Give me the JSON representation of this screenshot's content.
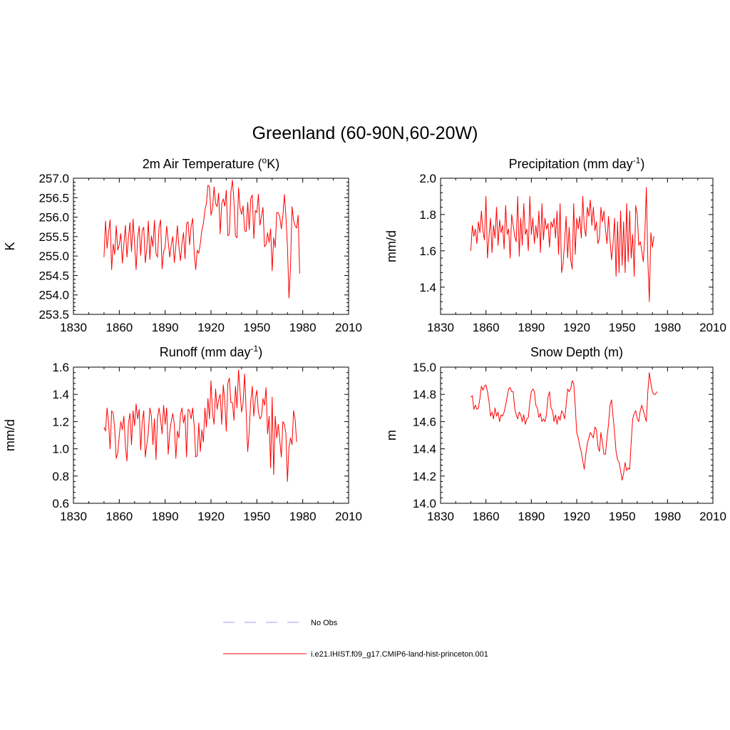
{
  "figure": {
    "title": "Greenland (60-90N,60-20W)"
  },
  "colors": {
    "model": "#ff0000",
    "obs": "#9999ff",
    "axes": "#000000"
  },
  "legend": {
    "items": [
      {
        "label": "No Obs",
        "style": "dashed",
        "color": "#9999ff"
      },
      {
        "label": "i.e21.IHIST.f09_g17.CMIP6-land-hist-princeton.001",
        "style": "solid",
        "color": "#ff0000"
      }
    ]
  },
  "chart_data": [
    {
      "type": "line",
      "title": "2m Air Temperature (",
      "title_sup": "o",
      "title_after": "K)",
      "ylabel": "K",
      "xlim": [
        1830,
        2010
      ],
      "xticks": [
        1830,
        1860,
        1890,
        1920,
        1950,
        1980,
        2010
      ],
      "ylim": [
        253.5,
        257.0
      ],
      "yticks": [
        253.5,
        254.0,
        254.5,
        255.0,
        255.5,
        256.0,
        256.5,
        257.0
      ],
      "ytick_decimals": 1,
      "series": [
        {
          "x_start": 1850,
          "values": [
            254.97,
            255.9,
            255.2,
            255.6,
            255.93,
            254.65,
            255.31,
            255.04,
            255.78,
            255.15,
            255.3,
            255.58,
            254.82,
            255.31,
            255.79,
            254.97,
            255.48,
            255.86,
            255.11,
            255.95,
            255.32,
            254.65,
            255.45,
            255.77,
            255.02,
            255.66,
            255.74,
            254.83,
            255.19,
            255.9,
            254.91,
            255.52,
            255.24,
            255.92,
            255.07,
            254.97,
            255.73,
            255.93,
            254.67,
            255.11,
            255.23,
            255.77,
            255.38,
            254.97,
            255.29,
            255.5,
            254.83,
            255.26,
            255.78,
            255.24,
            254.88,
            255.32,
            255.6,
            254.93,
            255.83,
            255.88,
            255.29,
            255.77,
            255.97,
            255.08,
            254.65,
            255.15,
            255.07,
            255.32,
            255.66,
            255.83,
            256.18,
            256.35,
            256.82,
            256.78,
            256.05,
            256.22,
            256.78,
            256.35,
            256.27,
            256.62,
            255.57,
            256.35,
            256.47,
            256.28,
            256.69,
            255.52,
            255.56,
            256.64,
            256.95,
            256.42,
            255.51,
            255.47,
            256.75,
            256.24,
            256.07,
            256.29,
            255.65,
            255.63,
            256.38,
            255.68,
            256.48,
            256.57,
            255.45,
            256.17,
            256.12,
            256.59,
            255.79,
            256.02,
            256.25,
            255.24,
            255.29,
            255.6,
            255.35,
            255.7,
            254.62,
            255.47,
            255.22,
            256.12,
            256.11,
            256.0,
            255.7,
            256.03,
            256.58,
            256.01,
            255.25,
            253.92,
            254.72,
            256.27,
            255.92,
            255.78,
            255.72,
            256.05,
            254.55
          ]
        }
      ]
    },
    {
      "type": "line",
      "title": "Precipitation (mm day",
      "title_sup": "-1",
      "title_after": ")",
      "ylabel": "mm/d",
      "xlim": [
        1830,
        2010
      ],
      "xticks": [
        1830,
        1860,
        1890,
        1920,
        1950,
        1980,
        2010
      ],
      "ylim": [
        1.25,
        2.0
      ],
      "yticks": [
        1.4,
        1.6,
        1.8,
        2.0
      ],
      "ytick_decimals": 1,
      "series": [
        {
          "x_start": 1850,
          "values": [
            1.6,
            1.74,
            1.68,
            1.72,
            1.64,
            1.76,
            1.7,
            1.82,
            1.71,
            1.66,
            1.9,
            1.56,
            1.68,
            1.78,
            1.59,
            1.74,
            1.67,
            1.84,
            1.63,
            1.77,
            1.7,
            1.74,
            1.61,
            1.85,
            1.69,
            1.72,
            1.56,
            1.8,
            1.74,
            1.68,
            1.65,
            1.9,
            1.57,
            1.78,
            1.63,
            1.86,
            1.69,
            1.72,
            1.6,
            1.9,
            1.69,
            1.78,
            1.64,
            1.74,
            1.67,
            1.82,
            1.59,
            1.86,
            1.66,
            1.78,
            1.72,
            1.75,
            1.62,
            1.76,
            1.73,
            1.78,
            1.67,
            1.82,
            1.58,
            1.86,
            1.48,
            1.53,
            1.65,
            1.79,
            1.56,
            1.73,
            1.55,
            1.5,
            1.86,
            1.58,
            1.78,
            1.72,
            1.79,
            1.67,
            1.9,
            1.73,
            1.68,
            1.84,
            1.79,
            1.88,
            1.74,
            1.84,
            1.71,
            1.76,
            1.64,
            1.67,
            1.84,
            1.76,
            1.82,
            1.72,
            1.64,
            1.79,
            1.66,
            1.55,
            1.64,
            1.78,
            1.46,
            1.76,
            1.48,
            1.82,
            1.52,
            1.76,
            1.48,
            1.86,
            1.54,
            1.82,
            1.56,
            1.69,
            1.46,
            1.85,
            1.8,
            1.63,
            1.65,
            1.6,
            1.54,
            1.68,
            1.95,
            1.55,
            1.32,
            1.7,
            1.62,
            1.68
          ]
        }
      ]
    },
    {
      "type": "line",
      "title": "Runoff (mm day",
      "title_sup": "-1",
      "title_after": ")",
      "ylabel": "mm/d",
      "xlim": [
        1830,
        2010
      ],
      "xticks": [
        1830,
        1860,
        1890,
        1920,
        1950,
        1980,
        2010
      ],
      "ylim": [
        0.6,
        1.6
      ],
      "yticks": [
        0.6,
        0.8,
        1.0,
        1.2,
        1.4,
        1.6
      ],
      "ytick_decimals": 1,
      "series": [
        {
          "x_start": 1850,
          "values": [
            1.16,
            1.13,
            1.3,
            1.19,
            1.0,
            1.28,
            1.26,
            1.15,
            0.93,
            0.97,
            1.1,
            1.2,
            1.14,
            1.24,
            1.02,
            0.91,
            1.19,
            1.26,
            1.03,
            1.28,
            1.17,
            1.33,
            1.22,
            1.29,
            0.99,
            1.2,
            1.28,
            0.94,
            1.03,
            1.12,
            1.3,
            1.24,
            1.03,
            1.22,
            0.92,
            1.23,
            1.3,
            1.22,
            1.11,
            1.32,
            1.18,
            1.3,
            0.96,
            1.12,
            1.2,
            1.26,
            1.18,
            0.93,
            1.13,
            1.08,
            1.25,
            1.3,
            1.19,
            1.25,
            0.94,
            1.29,
            1.28,
            1.22,
            1.3,
            1.17,
            0.94,
            0.95,
            1.19,
            0.98,
            1.14,
            1.05,
            1.3,
            1.16,
            1.37,
            1.22,
            1.5,
            1.26,
            1.18,
            1.44,
            1.29,
            1.36,
            1.4,
            1.18,
            1.47,
            1.35,
            1.13,
            1.48,
            1.52,
            1.34,
            1.34,
            1.21,
            1.46,
            1.3,
            1.58,
            1.42,
            1.27,
            1.34,
            1.55,
            1.27,
            0.98,
            1.13,
            1.35,
            1.46,
            1.24,
            1.37,
            1.43,
            1.27,
            1.22,
            1.24,
            1.37,
            1.32,
            1.45,
            1.11,
            1.24,
            0.86,
            1.38,
            0.81,
            1.24,
            1.08,
            1.18,
            1.06,
            0.94,
            1.2,
            1.18,
            1.11,
            0.76,
            1.01,
            1.08,
            1.03,
            1.28,
            1.22,
            1.05
          ]
        }
      ]
    },
    {
      "type": "line",
      "title": "Snow Depth (m)",
      "title_sup": "",
      "title_after": "",
      "ylabel": "m",
      "xlim": [
        1830,
        2010
      ],
      "xticks": [
        1830,
        1860,
        1890,
        1920,
        1950,
        1980,
        2010
      ],
      "ylim": [
        14.0,
        15.0
      ],
      "yticks": [
        14.0,
        14.2,
        14.4,
        14.6,
        14.8,
        15.0
      ],
      "ytick_decimals": 1,
      "series": [
        {
          "x_start": 1850,
          "values": [
            14.78,
            14.79,
            14.69,
            14.72,
            14.69,
            14.7,
            14.77,
            14.86,
            14.83,
            14.86,
            14.87,
            14.82,
            14.75,
            14.64,
            14.67,
            14.62,
            14.7,
            14.64,
            14.67,
            14.6,
            14.65,
            14.64,
            14.67,
            14.72,
            14.78,
            14.84,
            14.85,
            14.82,
            14.82,
            14.7,
            14.65,
            14.62,
            14.67,
            14.65,
            14.6,
            14.65,
            14.58,
            14.62,
            14.63,
            14.74,
            14.82,
            14.84,
            14.82,
            14.72,
            14.7,
            14.63,
            14.66,
            14.6,
            14.62,
            14.6,
            14.65,
            14.78,
            14.82,
            14.7,
            14.68,
            14.6,
            14.65,
            14.58,
            14.64,
            14.61,
            14.68,
            14.66,
            14.62,
            14.72,
            14.84,
            14.82,
            14.84,
            14.9,
            14.88,
            14.72,
            14.52,
            14.48,
            14.42,
            14.38,
            14.31,
            14.25,
            14.36,
            14.44,
            14.48,
            14.52,
            14.5,
            14.48,
            14.56,
            14.54,
            14.42,
            14.38,
            14.52,
            14.44,
            14.36,
            14.36,
            14.48,
            14.58,
            14.72,
            14.76,
            14.64,
            14.52,
            14.38,
            14.32,
            14.3,
            14.24,
            14.17,
            14.22,
            14.3,
            14.24,
            14.26,
            14.25,
            14.45,
            14.62,
            14.66,
            14.68,
            14.62,
            14.6,
            14.68,
            14.72,
            14.68,
            14.64,
            14.6,
            14.82,
            14.96,
            14.88,
            14.82,
            14.8,
            14.8,
            14.82
          ]
        }
      ]
    }
  ]
}
